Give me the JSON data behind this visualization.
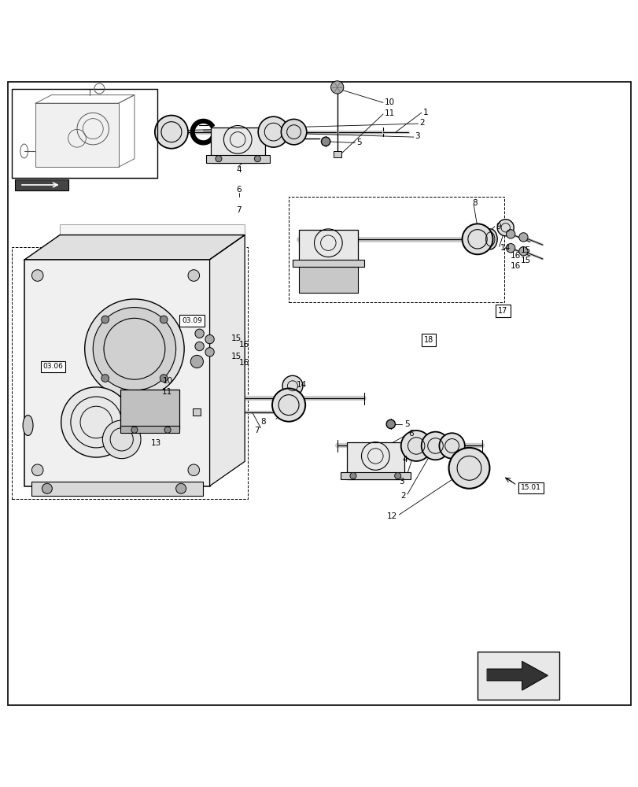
{
  "background_color": "#ffffff",
  "border_color": "#000000",
  "fig_width": 8.12,
  "fig_height": 10.0,
  "dpi": 100
}
